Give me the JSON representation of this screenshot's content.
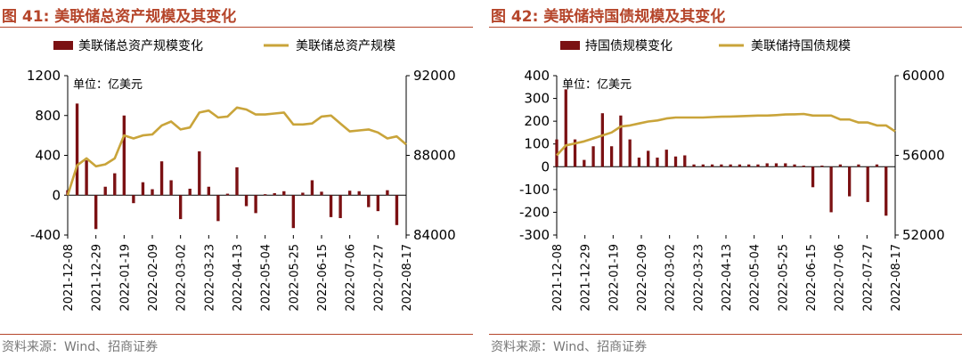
{
  "colors": {
    "bar": "#7B1113",
    "line": "#C9A43A",
    "title": "#B5452A",
    "source": "#777777"
  },
  "chart_data": [
    {
      "panel_label": "图 41:",
      "title": "美联储总资产规模及其变化",
      "type": "bar+line",
      "unit_label": "单位：亿美元",
      "source": "资料来源：Wind、招商证券",
      "legend": {
        "bar": "美联储总资产规模变化",
        "line": "美联储总资产规模"
      },
      "left_axis": {
        "min": -400,
        "max": 1200,
        "ticks": [
          -400,
          0,
          400,
          800,
          1200
        ],
        "tick_labels": [
          "-400",
          "0",
          "400",
          "800",
          "1200"
        ]
      },
      "right_axis": {
        "min": 84000,
        "max": 92000,
        "ticks": [
          84000,
          88000,
          92000
        ],
        "tick_labels": [
          "84000",
          "88000",
          "92000"
        ]
      },
      "x_tick_labels": [
        "2021-12-08",
        "2021-12-29",
        "2022-01-19",
        "2022-02-09",
        "2022-03-02",
        "2022-03-23",
        "2022-04-13",
        "2022-05-04",
        "2022-05-25",
        "2022-06-15",
        "2022-07-06",
        "2022-07-27",
        "2022-08-17"
      ],
      "series": [
        {
          "name": "美联储总资产规模变化",
          "kind": "bar",
          "values": [
            50,
            920,
            350,
            -340,
            85,
            220,
            800,
            -80,
            130,
            60,
            340,
            150,
            -240,
            65,
            440,
            85,
            -260,
            15,
            280,
            -110,
            -180,
            10,
            20,
            40,
            -330,
            25,
            150,
            35,
            -220,
            -230,
            45,
            40,
            -120,
            -160,
            50,
            -300
          ]
        },
        {
          "name": "美联储总资产规模",
          "kind": "line",
          "values": [
            86000,
            87500,
            87850,
            87450,
            87550,
            87850,
            89000,
            88850,
            89000,
            89050,
            89500,
            89700,
            89300,
            89400,
            90150,
            90250,
            89900,
            89950,
            90400,
            90300,
            90050,
            90050,
            90100,
            90150,
            89550,
            89550,
            89600,
            89950,
            90000,
            89600,
            89200,
            89250,
            89300,
            89150,
            88850,
            88950,
            88550
          ]
        }
      ]
    },
    {
      "panel_label": "图 42:",
      "title": "美联储持国债规模及其变化",
      "type": "bar+line",
      "unit_label": "单位：亿美元",
      "source": "资料来源：Wind、招商证券",
      "legend": {
        "bar": "持国债规模变化",
        "line": "美联储持国债规模"
      },
      "left_axis": {
        "min": -300,
        "max": 400,
        "ticks": [
          -300,
          -200,
          -100,
          0,
          100,
          200,
          300,
          400
        ],
        "tick_labels": [
          "-300",
          "-200",
          "-100",
          "0",
          "100",
          "200",
          "300",
          "400"
        ]
      },
      "right_axis": {
        "min": 52000,
        "max": 60000,
        "ticks": [
          52000,
          56000,
          60000
        ],
        "tick_labels": [
          "52000",
          "56000",
          "60000"
        ]
      },
      "x_tick_labels": [
        "2021-12-08",
        "2021-12-29",
        "2022-01-19",
        "2022-02-09",
        "2022-03-02",
        "2022-03-23",
        "2022-04-13",
        "2022-05-04",
        "2022-05-25",
        "2022-06-15",
        "2022-07-06",
        "2022-07-27",
        "2022-08-17"
      ],
      "series": [
        {
          "name": "持国债规模变化",
          "kind": "bar",
          "values": [
            120,
            340,
            120,
            30,
            90,
            235,
            90,
            225,
            120,
            40,
            70,
            40,
            75,
            45,
            50,
            10,
            10,
            10,
            10,
            10,
            10,
            10,
            10,
            15,
            15,
            15,
            10,
            5,
            -90,
            5,
            -200,
            10,
            -130,
            10,
            -155,
            10,
            -215
          ]
        },
        {
          "name": "美联储持国债规模",
          "kind": "line",
          "values": [
            56000,
            56500,
            56600,
            56700,
            56850,
            57000,
            57150,
            57450,
            57500,
            57600,
            57700,
            57750,
            57850,
            57900,
            57900,
            57900,
            57900,
            57920,
            57940,
            57950,
            57960,
            57980,
            58000,
            58000,
            58020,
            58050,
            58060,
            58080,
            58000,
            58000,
            58000,
            57800,
            57800,
            57650,
            57650,
            57500,
            57500,
            57200
          ]
        }
      ]
    }
  ]
}
